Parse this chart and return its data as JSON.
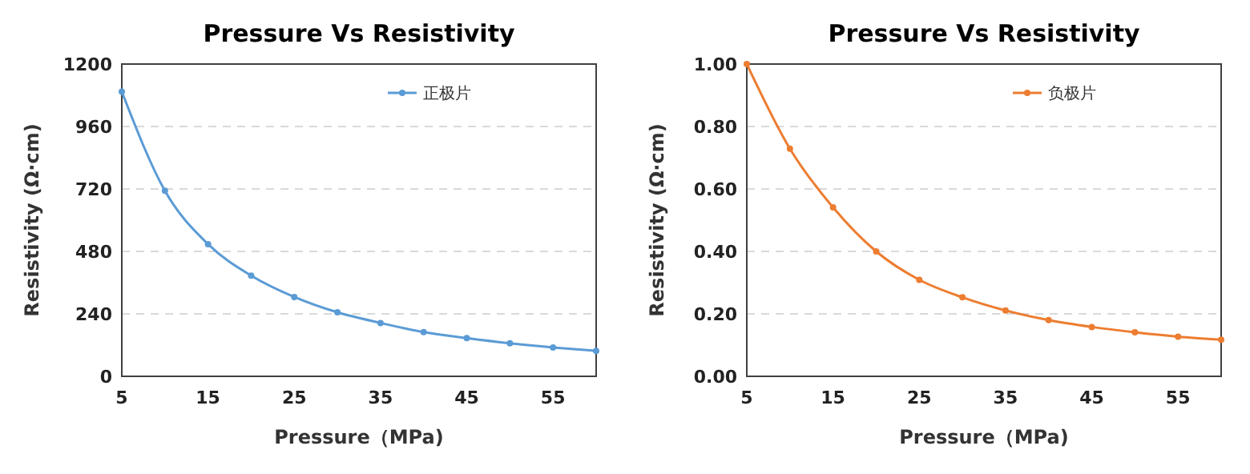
{
  "chart_data": [
    {
      "type": "line",
      "title": "Pressure Vs Resistivity",
      "xlabel": "Pressure（MPa)",
      "ylabel": "Resistivity (Ω·cm)",
      "x": [
        5,
        10,
        15,
        20,
        25,
        30,
        35,
        40,
        45,
        50,
        55,
        60
      ],
      "series": [
        {
          "name": "正极片",
          "color": "#5b9bd5",
          "values": [
            1094,
            713,
            508,
            387,
            305,
            246,
            205,
            170,
            147,
            127,
            111,
            98
          ]
        }
      ],
      "xlim": [
        5,
        60
      ],
      "xticks": [
        5,
        15,
        25,
        35,
        45,
        55
      ],
      "ylim": [
        0,
        1200
      ],
      "yticks": [
        0,
        240,
        480,
        720,
        960,
        1200
      ],
      "grid": "y",
      "legend": "top right",
      "marker": "circle",
      "line_style": "solid"
    },
    {
      "type": "line",
      "title": "Pressure Vs Resistivity",
      "xlabel": "Pressure（MPa)",
      "ylabel": "Resistivity (Ω·cm)",
      "x": [
        5,
        10,
        15,
        20,
        25,
        30,
        35,
        40,
        45,
        50,
        55,
        60
      ],
      "series": [
        {
          "name": "负极片",
          "color": "#ed7d31",
          "values": [
            1.0,
            0.729,
            0.541,
            0.4,
            0.309,
            0.253,
            0.211,
            0.18,
            0.158,
            0.141,
            0.127,
            0.117
          ]
        }
      ],
      "xlim": [
        5,
        60
      ],
      "xticks": [
        5,
        15,
        25,
        35,
        45,
        55
      ],
      "ylim": [
        0,
        1
      ],
      "yticks": [
        {
          "value": 0,
          "label": "0.00"
        },
        {
          "value": 0.2,
          "label": "0.20"
        },
        {
          "value": 0.4,
          "label": "0.40"
        },
        {
          "value": 0.6,
          "label": "0.60"
        },
        {
          "value": 0.8,
          "label": "0.80"
        },
        {
          "value": 1,
          "label": "1.00"
        }
      ],
      "grid": "y",
      "legend": "top right",
      "marker": "circle",
      "line_style": "solid"
    }
  ]
}
